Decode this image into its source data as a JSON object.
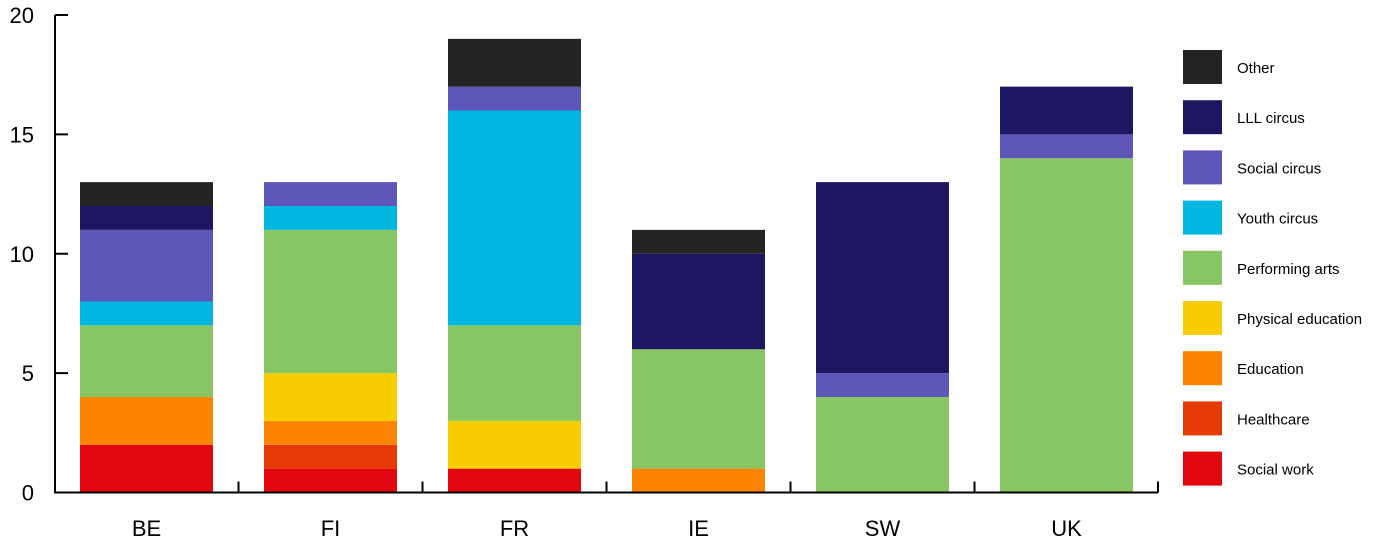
{
  "chart_data": {
    "type": "bar",
    "stacked": true,
    "categories": [
      "BE",
      "FI",
      "FR",
      "IE",
      "SW",
      "UK"
    ],
    "ylim": [
      0,
      20
    ],
    "yticks": [
      0,
      5,
      10,
      15,
      20
    ],
    "grid": false,
    "legend_position": "right",
    "series": [
      {
        "name": "Social work",
        "color": "#e0070f",
        "values": [
          2,
          1,
          1,
          0,
          0,
          0
        ]
      },
      {
        "name": "Healthcare",
        "color": "#e53a05",
        "values": [
          0,
          1,
          0,
          0,
          0,
          0
        ]
      },
      {
        "name": "Education",
        "color": "#fd8402",
        "values": [
          2,
          1,
          0,
          1,
          0,
          0
        ]
      },
      {
        "name": "Physical education",
        "color": "#f7cd00",
        "values": [
          0,
          2,
          2,
          0,
          0,
          0
        ]
      },
      {
        "name": "Performing arts",
        "color": "#87c662",
        "values": [
          3,
          6,
          4,
          5,
          4,
          14
        ]
      },
      {
        "name": "Youth circus",
        "color": "#00b6de",
        "values": [
          1,
          1,
          9,
          0,
          0,
          0
        ]
      },
      {
        "name": "Social circus",
        "color": "#5e56b9",
        "values": [
          3,
          1,
          1,
          0,
          1,
          1
        ]
      },
      {
        "name": "LLL circus",
        "color": "#1d1660",
        "values": [
          1,
          0,
          0,
          4,
          8,
          2
        ]
      },
      {
        "name": "Other",
        "color": "#252323",
        "values": [
          1,
          0,
          2,
          1,
          0,
          0
        ]
      }
    ]
  }
}
